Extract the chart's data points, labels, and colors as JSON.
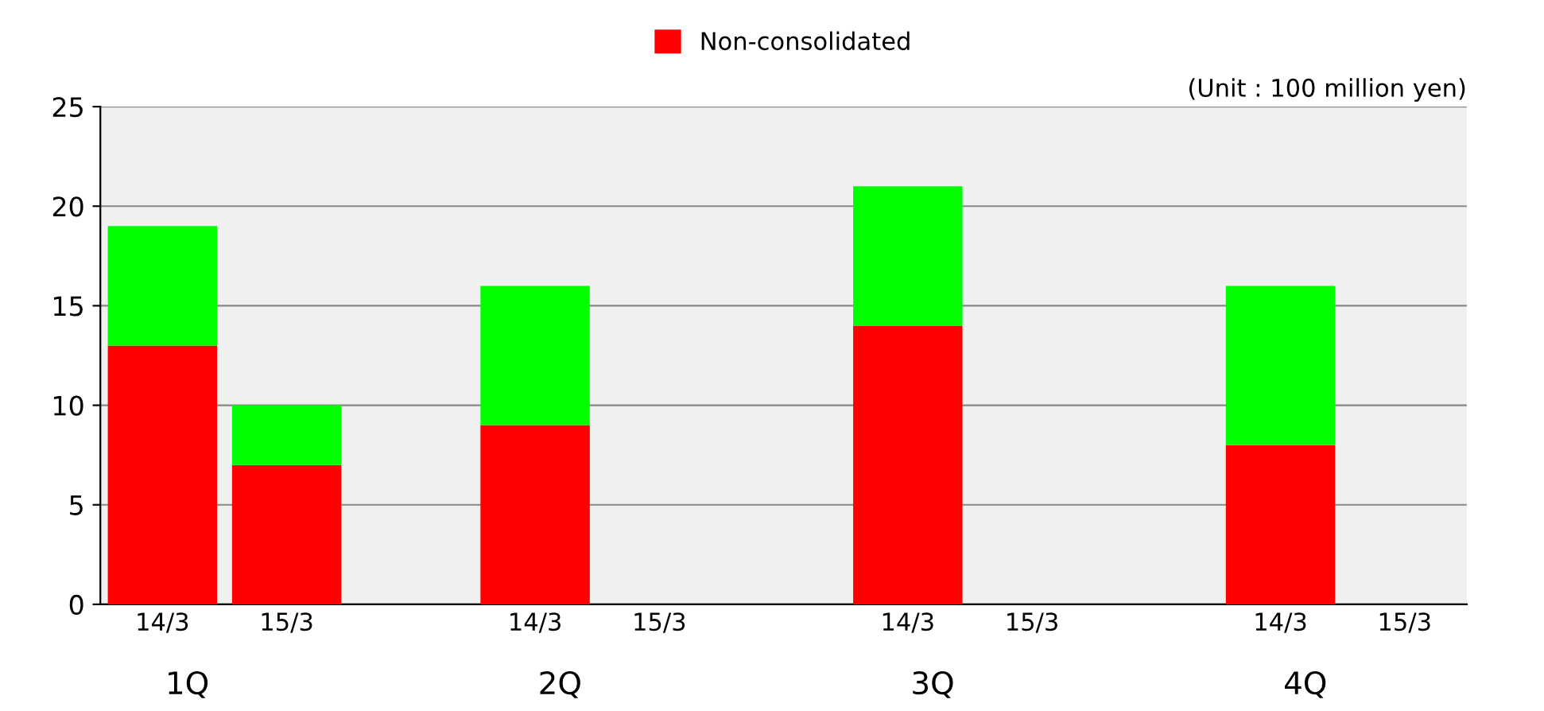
{
  "chart_data": {
    "type": "bar",
    "stacked": true,
    "categories": [
      "14/3",
      "15/3",
      null,
      "14/3",
      "15/3",
      null,
      "14/3",
      "15/3",
      null,
      "14/3",
      "15/3"
    ],
    "series": [
      {
        "name": "Non-consolidated",
        "color": "#ff0000",
        "values": [
          13,
          7,
          null,
          9,
          null,
          null,
          14,
          null,
          null,
          8,
          null
        ]
      },
      {
        "color": "#00ff00",
        "values": [
          6,
          3,
          null,
          7,
          null,
          null,
          7,
          null,
          null,
          8,
          null
        ]
      }
    ],
    "ylim": [
      0,
      25
    ],
    "yticks": [
      0,
      5,
      10,
      15,
      20,
      25
    ],
    "grid": "y",
    "legend": "top",
    "annotations": [
      "(Unit : 100 million yen)",
      "1Q",
      "2Q",
      "3Q",
      "4Q"
    ]
  }
}
